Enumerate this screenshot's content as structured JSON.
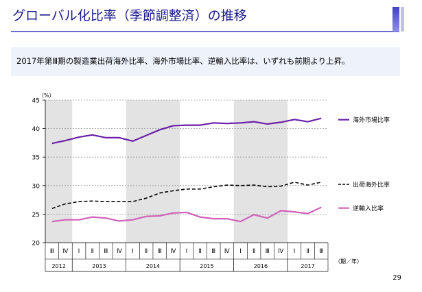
{
  "title": "グローバル化比率（季節調整済）の推移",
  "summary": "2017年第Ⅲ期の製造業出荷海外比率、海外市場比率、逆輸入比率は、いずれも前期より上昇。",
  "page_number": "29",
  "chart_data": {
    "type": "line",
    "unit_label": "（%）",
    "x_unit_label": "（期／年）",
    "ylim": [
      20,
      45
    ],
    "yticks": [
      20,
      25,
      30,
      35,
      40,
      45
    ],
    "quarters": [
      "Ⅲ",
      "Ⅳ",
      "Ⅰ",
      "Ⅱ",
      "Ⅲ",
      "Ⅳ",
      "Ⅰ",
      "Ⅱ",
      "Ⅲ",
      "Ⅳ",
      "Ⅰ",
      "Ⅱ",
      "Ⅲ",
      "Ⅳ",
      "Ⅰ",
      "Ⅱ",
      "Ⅲ",
      "Ⅳ",
      "Ⅰ",
      "Ⅱ",
      "Ⅲ"
    ],
    "years": [
      {
        "label": "2012",
        "start": 0,
        "count": 2
      },
      {
        "label": "2013",
        "start": 2,
        "count": 4
      },
      {
        "label": "2014",
        "start": 6,
        "count": 4
      },
      {
        "label": "2015",
        "start": 10,
        "count": 4
      },
      {
        "label": "2016",
        "start": 14,
        "count": 4
      },
      {
        "label": "2017",
        "start": 18,
        "count": 3
      }
    ],
    "shaded_years": [
      0,
      2,
      4
    ],
    "series": [
      {
        "name": "海外市場比率",
        "color": "#6a1fa8",
        "dash": "",
        "values": [
          37.4,
          37.9,
          38.5,
          38.9,
          38.4,
          38.4,
          37.8,
          38.8,
          39.8,
          40.5,
          40.6,
          40.6,
          41.0,
          40.9,
          41.0,
          41.2,
          40.8,
          41.1,
          41.6,
          41.2,
          41.8
        ]
      },
      {
        "name": "出荷海外比率",
        "color": "#000000",
        "dash": "5,3",
        "values": [
          26.0,
          26.8,
          27.2,
          27.3,
          27.2,
          27.2,
          27.2,
          27.8,
          28.7,
          29.1,
          29.4,
          29.4,
          29.8,
          30.1,
          30.0,
          30.1,
          29.8,
          29.9,
          30.6,
          30.1,
          30.6
        ]
      },
      {
        "name": "逆輸入比率",
        "color": "#d060b8",
        "dash": "",
        "values": [
          23.7,
          24.0,
          24.0,
          24.5,
          24.3,
          23.8,
          24.0,
          24.6,
          24.7,
          25.2,
          25.3,
          24.5,
          24.2,
          24.2,
          23.7,
          24.9,
          24.3,
          25.6,
          25.4,
          25.1,
          26.2
        ]
      }
    ]
  }
}
